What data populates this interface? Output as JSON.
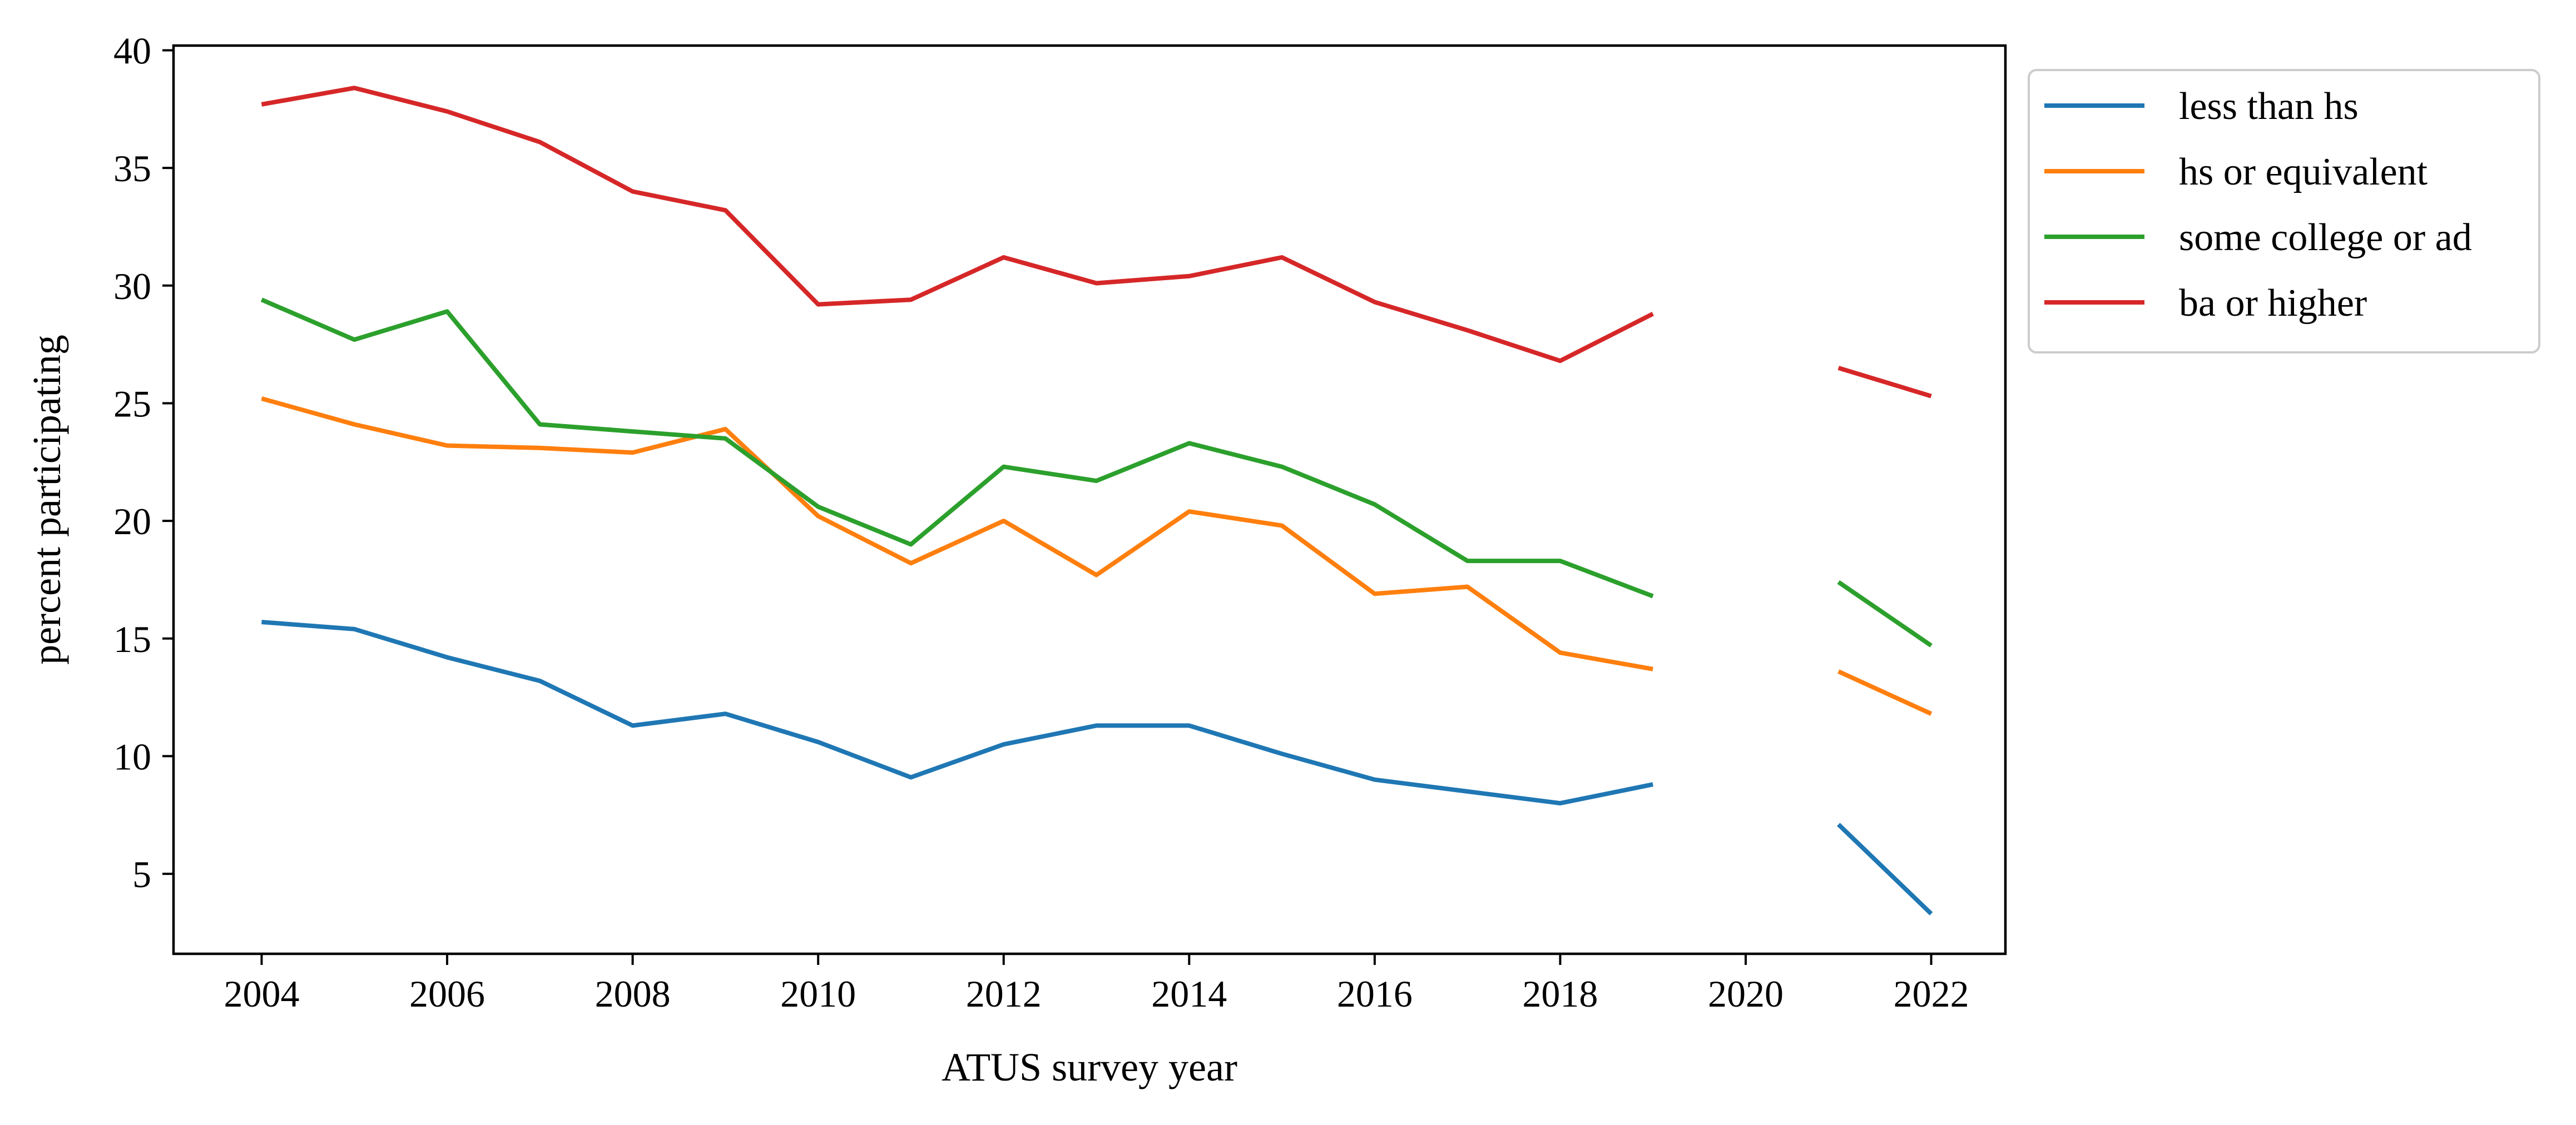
{
  "chart_data": {
    "type": "line",
    "xlabel": "ATUS survey year",
    "ylabel": "percent participating",
    "xlim": [
      2003.05,
      2022.8
    ],
    "ylim": [
      1.6,
      40.2
    ],
    "x_ticks": [
      2004,
      2006,
      2008,
      2010,
      2012,
      2014,
      2016,
      2018,
      2020,
      2022
    ],
    "y_ticks": [
      5,
      10,
      15,
      20,
      25,
      30,
      35,
      40
    ],
    "grid": false,
    "legend_position": "outside upper right",
    "x": [
      2004,
      2005,
      2006,
      2007,
      2008,
      2009,
      2010,
      2011,
      2012,
      2013,
      2014,
      2015,
      2016,
      2017,
      2018,
      2019,
      2020,
      2021,
      2022
    ],
    "series": [
      {
        "name": "less than hs",
        "color": "#1f77b4",
        "values": [
          15.7,
          15.4,
          14.2,
          13.2,
          11.3,
          11.8,
          10.6,
          9.1,
          10.5,
          11.3,
          11.3,
          10.1,
          9.0,
          8.5,
          8.0,
          8.8,
          null,
          7.1,
          3.3
        ]
      },
      {
        "name": "hs or equivalent",
        "color": "#ff7f0e",
        "values": [
          25.2,
          24.1,
          23.2,
          23.1,
          22.9,
          23.9,
          20.2,
          18.2,
          20.0,
          17.7,
          20.4,
          19.8,
          16.9,
          17.2,
          14.4,
          13.7,
          null,
          13.6,
          11.8
        ]
      },
      {
        "name": "some college or ad",
        "color": "#2ca02c",
        "values": [
          29.4,
          27.7,
          28.9,
          24.1,
          23.8,
          23.5,
          20.6,
          19.0,
          22.3,
          21.7,
          23.3,
          22.3,
          20.7,
          18.3,
          18.3,
          16.8,
          null,
          17.4,
          14.7
        ]
      },
      {
        "name": "ba or higher",
        "color": "#d62728",
        "values": [
          37.7,
          38.4,
          37.4,
          36.1,
          34.0,
          33.2,
          29.2,
          29.4,
          31.2,
          30.1,
          30.4,
          31.2,
          29.3,
          28.1,
          26.8,
          28.8,
          null,
          26.5,
          25.3
        ]
      }
    ]
  }
}
